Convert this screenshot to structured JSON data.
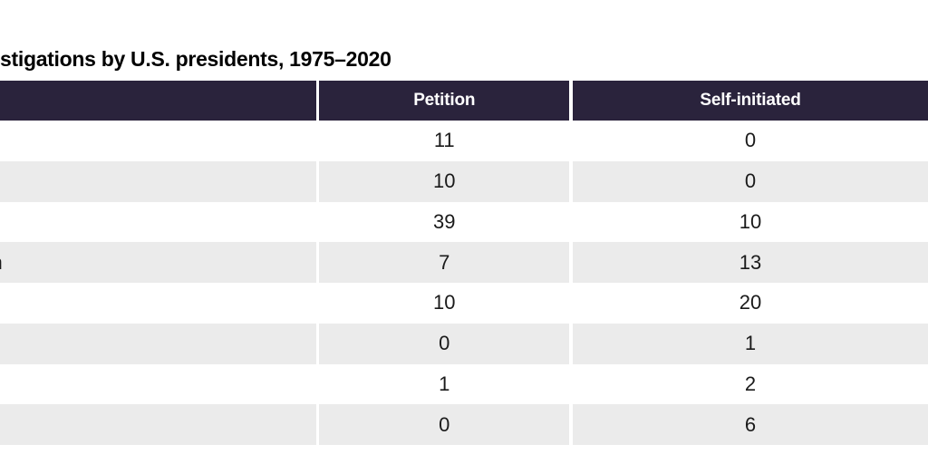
{
  "title": "stigations by U.S. presidents, 1975–2020",
  "table": {
    "columns": {
      "label": "",
      "petition": "Petition",
      "self_initiated": "Self-initiated"
    },
    "rows": [
      {
        "label": "",
        "petition": "11",
        "self_initiated": "0"
      },
      {
        "label": "",
        "petition": "10",
        "self_initiated": "0"
      },
      {
        "label": "",
        "petition": "39",
        "self_initiated": "10"
      },
      {
        "label": "n",
        "petition": "7",
        "self_initiated": "13"
      },
      {
        "label": "",
        "petition": "10",
        "self_initiated": "20"
      },
      {
        "label": "",
        "petition": "0",
        "self_initiated": "1"
      },
      {
        "label": "",
        "petition": "1",
        "self_initiated": "2"
      },
      {
        "label": "",
        "petition": "0",
        "self_initiated": "6"
      }
    ]
  },
  "colors": {
    "header_bg": "#2a233c",
    "header_text": "#ffffff",
    "stripe_bg": "#ebebeb",
    "body_text": "#1a1a1a",
    "title_text": "#000000"
  }
}
